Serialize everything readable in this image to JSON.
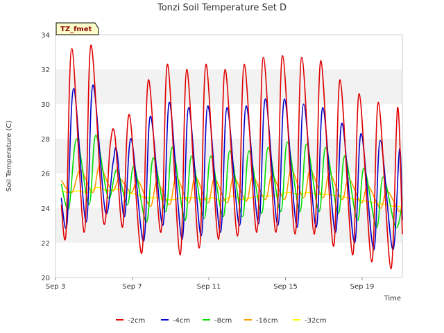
{
  "chart_data": {
    "type": "line",
    "title": "Tonzi Soil Temperature Set D",
    "xlabel": "Time",
    "ylabel": "Soil Temperature (C)",
    "ylim": [
      20,
      34
    ],
    "xlim": [
      3,
      21.1
    ],
    "x_unit": "day of September",
    "yticks": [
      20,
      22,
      24,
      26,
      28,
      30,
      32,
      34
    ],
    "xticks": [
      {
        "x": 3,
        "label": "Sep 3"
      },
      {
        "x": 7,
        "label": "Sep 7"
      },
      {
        "x": 11,
        "label": "Sep 11"
      },
      {
        "x": 15,
        "label": "Sep 15"
      },
      {
        "x": 19,
        "label": "Sep 19"
      }
    ],
    "grid": "horizontal bands",
    "legend_position": "bottom",
    "site_badge": "TZ_fmet",
    "series": [
      {
        "name": "-2cm",
        "color": "#e00000",
        "x": [
          3.3,
          3.55,
          3.85,
          4.5,
          4.85,
          5.5,
          5.85,
          6.1,
          6.5,
          6.85,
          7.5,
          7.85,
          8.5,
          8.85,
          9.5,
          9.85,
          10.5,
          10.85,
          11.5,
          11.85,
          12.5,
          12.85,
          13.5,
          13.85,
          14.5,
          14.85,
          15.5,
          15.85,
          16.5,
          16.85,
          17.5,
          17.85,
          18.5,
          18.85,
          19.5,
          19.85,
          20.5,
          20.85,
          21.1
        ],
        "y": [
          24.2,
          22.6,
          33.2,
          22.6,
          33.4,
          23.2,
          27.6,
          28.2,
          22.9,
          29.4,
          21.4,
          31.4,
          22.6,
          32.3,
          21.3,
          32.0,
          21.7,
          32.3,
          22.2,
          32.0,
          22.4,
          32.3,
          22.6,
          32.7,
          22.6,
          32.8,
          22.5,
          32.7,
          22.5,
          32.5,
          21.8,
          31.4,
          21.3,
          30.6,
          20.9,
          30.1,
          20.5,
          29.8,
          22.5
        ]
      },
      {
        "name": "-4cm",
        "color": "#0000cc",
        "x": [
          3.3,
          3.6,
          3.95,
          4.6,
          4.95,
          5.6,
          6.0,
          6.2,
          6.6,
          6.95,
          7.6,
          7.95,
          8.6,
          8.95,
          9.6,
          9.95,
          10.6,
          10.95,
          11.6,
          11.95,
          12.6,
          12.95,
          13.6,
          13.95,
          14.6,
          14.95,
          15.6,
          15.95,
          16.6,
          16.95,
          17.6,
          17.95,
          18.6,
          18.95,
          19.6,
          19.95,
          20.6,
          20.95,
          21.1
        ],
        "y": [
          24.6,
          23.1,
          30.9,
          23.2,
          31.1,
          23.8,
          26.6,
          27.3,
          23.5,
          28.0,
          22.1,
          29.3,
          23.0,
          30.1,
          22.2,
          29.8,
          22.4,
          29.9,
          22.6,
          29.8,
          23.0,
          29.9,
          23.1,
          30.3,
          23.0,
          30.3,
          22.9,
          30.0,
          22.9,
          29.8,
          22.6,
          28.9,
          22.0,
          28.3,
          21.6,
          27.9,
          21.6,
          27.4,
          23.3
        ]
      },
      {
        "name": "-8cm",
        "color": "#00dd00",
        "x": [
          3.3,
          3.7,
          4.1,
          4.75,
          5.1,
          5.75,
          6.2,
          6.75,
          7.1,
          7.75,
          8.1,
          8.75,
          9.1,
          9.75,
          10.1,
          10.75,
          11.1,
          11.75,
          12.1,
          12.75,
          13.1,
          13.75,
          14.1,
          14.75,
          15.1,
          15.75,
          16.1,
          16.75,
          17.1,
          17.75,
          18.1,
          18.75,
          19.1,
          19.75,
          20.1,
          20.75,
          21.1
        ],
        "y": [
          25.4,
          24.0,
          28.0,
          24.2,
          28.2,
          24.6,
          26.2,
          24.2,
          26.4,
          23.2,
          26.9,
          23.8,
          27.5,
          23.3,
          27.0,
          23.4,
          27.0,
          23.5,
          27.3,
          23.5,
          27.3,
          23.7,
          27.5,
          23.8,
          27.8,
          23.8,
          27.7,
          23.8,
          27.5,
          23.7,
          27.0,
          23.3,
          26.3,
          22.9,
          25.8,
          22.9,
          24.3
        ]
      },
      {
        "name": "-16cm",
        "color": "#ff9900",
        "x": [
          3.3,
          3.85,
          4.3,
          4.95,
          5.3,
          5.95,
          6.35,
          6.95,
          7.3,
          7.95,
          8.3,
          8.95,
          9.3,
          9.95,
          10.3,
          10.95,
          11.3,
          11.95,
          12.3,
          12.95,
          13.3,
          13.95,
          14.3,
          14.95,
          15.3,
          15.95,
          16.3,
          16.95,
          17.3,
          17.95,
          18.3,
          18.95,
          19.3,
          19.95,
          20.3,
          20.95,
          21.1
        ],
        "y": [
          25.6,
          24.9,
          26.2,
          24.9,
          26.4,
          25.0,
          25.7,
          24.9,
          25.6,
          24.1,
          25.5,
          24.2,
          25.8,
          24.3,
          25.8,
          24.3,
          25.7,
          24.3,
          25.8,
          24.4,
          25.8,
          24.5,
          25.9,
          24.5,
          26.2,
          24.6,
          26.2,
          24.6,
          26.0,
          24.5,
          25.7,
          24.3,
          25.3,
          24.0,
          25.0,
          23.8,
          24.7
        ]
      },
      {
        "name": "-32cm",
        "color": "#ffff00",
        "x": [
          3.3,
          3.7,
          4.2,
          4.7,
          5.2,
          5.7,
          6.2,
          6.7,
          7.2,
          7.7,
          8.2,
          8.7,
          9.2,
          9.7,
          10.2,
          10.7,
          11.2,
          11.7,
          12.2,
          12.7,
          13.2,
          13.7,
          14.2,
          14.7,
          15.2,
          15.7,
          16.2,
          16.7,
          17.2,
          17.7,
          18.2,
          18.7,
          19.2,
          19.7,
          20.2,
          20.7,
          21.1
        ],
        "y": [
          25.0,
          24.9,
          25.0,
          24.9,
          25.2,
          25.0,
          25.1,
          24.9,
          24.8,
          24.6,
          24.6,
          24.5,
          24.5,
          24.6,
          24.6,
          24.5,
          24.6,
          24.4,
          24.7,
          24.5,
          24.6,
          24.7,
          24.7,
          24.8,
          24.9,
          24.8,
          24.9,
          24.8,
          24.8,
          24.7,
          24.6,
          24.5,
          24.4,
          24.3,
          24.2,
          24.1,
          24.1
        ]
      }
    ]
  }
}
